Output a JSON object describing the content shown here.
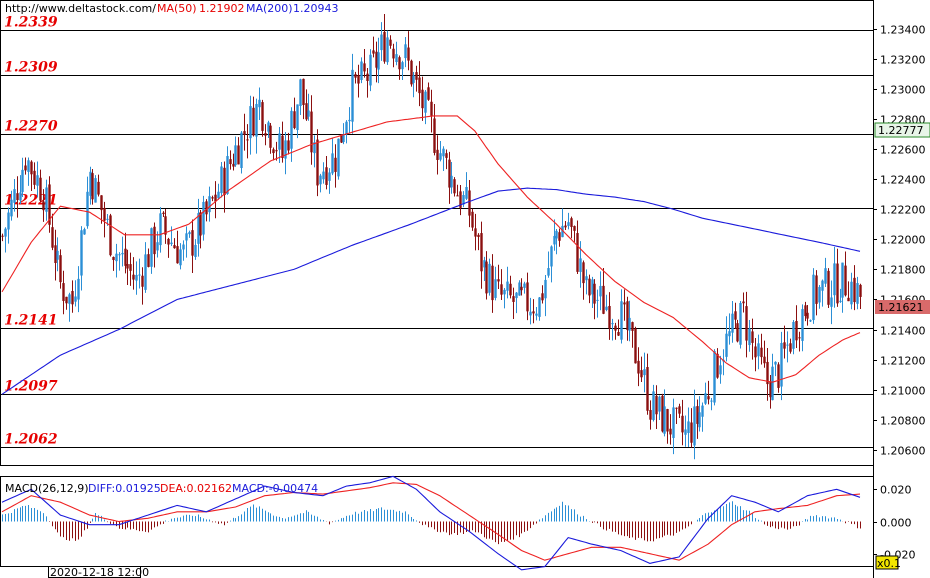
{
  "header": {
    "site": "http://www.deltastock.com/",
    "ma50_label": "MA(50)",
    "ma50_value": "1.21902",
    "ma200_label": "MA(200)",
    "ma200_value": "1.20943"
  },
  "macd_header": {
    "title": "MACD(26,12,9)",
    "diff": "DIFF:0.01925",
    "dea": "DEA:0.02162",
    "macd": "MACD:-0.00474"
  },
  "footer": {
    "date": "2020-12-18 12:00",
    "zoom": "x0.1"
  },
  "colors": {
    "up": "#2b8fd6",
    "down": "#8b0f0f",
    "ma50": "#ee2222",
    "ma200": "#1a1adb",
    "level_text": "#e60000",
    "current_price_bg": "#d86a6a",
    "marked_price_bg": "#e8f5e8"
  },
  "chart_data": {
    "type": "candlestick",
    "y_range": [
      1.2052,
      1.2357
    ],
    "y_ticks": [
      "1.23400",
      "1.23200",
      "1.23000",
      "1.22800",
      "1.22600",
      "1.22400",
      "1.22200",
      "1.22000",
      "1.21800",
      "1.21600",
      "1.21400",
      "1.21200",
      "1.21000",
      "1.20800",
      "1.20600"
    ],
    "levels": [
      "1.2339",
      "1.2309",
      "1.2270",
      "1.2221",
      "1.2141",
      "1.2097",
      "1.2062"
    ],
    "marked_price": "1.22777",
    "current_price": "1.21621",
    "anchors": [
      [
        0,
        1.2202
      ],
      [
        8,
        1.2255
      ],
      [
        14,
        1.2232
      ],
      [
        20,
        1.217
      ],
      [
        24,
        1.2158
      ],
      [
        30,
        1.2245
      ],
      [
        38,
        1.2195
      ],
      [
        46,
        1.2172
      ],
      [
        54,
        1.2208
      ],
      [
        62,
        1.219
      ],
      [
        70,
        1.2215
      ],
      [
        80,
        1.226
      ],
      [
        88,
        1.229
      ],
      [
        96,
        1.2255
      ],
      [
        102,
        1.23
      ],
      [
        108,
        1.2245
      ],
      [
        114,
        1.2255
      ],
      [
        120,
        1.23
      ],
      [
        126,
        1.231
      ],
      [
        132,
        1.2335
      ],
      [
        138,
        1.232
      ],
      [
        144,
        1.229
      ],
      [
        150,
        1.2258
      ],
      [
        156,
        1.2232
      ],
      [
        160,
        1.2218
      ],
      [
        164,
        1.2185
      ],
      [
        170,
        1.2162
      ],
      [
        176,
        1.2158
      ],
      [
        184,
        1.2158
      ],
      [
        190,
        1.2205
      ],
      [
        194,
        1.2212
      ],
      [
        200,
        1.2165
      ],
      [
        206,
        1.2158
      ],
      [
        212,
        1.2148
      ],
      [
        218,
        1.212
      ],
      [
        222,
        1.209
      ],
      [
        228,
        1.2078
      ],
      [
        234,
        1.207
      ],
      [
        238,
        1.208
      ],
      [
        242,
        1.21
      ],
      [
        246,
        1.2125
      ],
      [
        250,
        1.2138
      ],
      [
        254,
        1.215
      ],
      [
        258,
        1.2122
      ],
      [
        262,
        1.2105
      ],
      [
        266,
        1.2112
      ],
      [
        272,
        1.2145
      ],
      [
        278,
        1.2163
      ],
      [
        284,
        1.217
      ],
      [
        290,
        1.2172
      ],
      [
        294,
        1.2162
      ]
    ],
    "ma50": [
      [
        0,
        1.2165
      ],
      [
        10,
        1.2198
      ],
      [
        20,
        1.2222
      ],
      [
        30,
        1.2218
      ],
      [
        42,
        1.2203
      ],
      [
        54,
        1.2203
      ],
      [
        64,
        1.221
      ],
      [
        78,
        1.2233
      ],
      [
        92,
        1.2252
      ],
      [
        106,
        1.2263
      ],
      [
        118,
        1.227
      ],
      [
        132,
        1.2278
      ],
      [
        148,
        1.2282
      ],
      [
        156,
        1.2282
      ],
      [
        162,
        1.2272
      ],
      [
        170,
        1.225
      ],
      [
        180,
        1.2228
      ],
      [
        190,
        1.221
      ],
      [
        200,
        1.219
      ],
      [
        210,
        1.2172
      ],
      [
        220,
        1.2158
      ],
      [
        230,
        1.2148
      ],
      [
        240,
        1.2132
      ],
      [
        248,
        1.2118
      ],
      [
        256,
        1.2108
      ],
      [
        264,
        1.2105
      ],
      [
        272,
        1.211
      ],
      [
        280,
        1.2123
      ],
      [
        288,
        1.2133
      ],
      [
        294,
        1.2138
      ]
    ],
    "ma200": [
      [
        0,
        1.2097
      ],
      [
        20,
        1.2123
      ],
      [
        40,
        1.214
      ],
      [
        60,
        1.216
      ],
      [
        80,
        1.217
      ],
      [
        100,
        1.218
      ],
      [
        120,
        1.2196
      ],
      [
        140,
        1.221
      ],
      [
        160,
        1.2225
      ],
      [
        170,
        1.2232
      ],
      [
        180,
        1.2234
      ],
      [
        190,
        1.2233
      ],
      [
        200,
        1.223
      ],
      [
        210,
        1.2228
      ],
      [
        220,
        1.2225
      ],
      [
        230,
        1.222
      ],
      [
        240,
        1.2214
      ],
      [
        250,
        1.221
      ],
      [
        260,
        1.2206
      ],
      [
        270,
        1.2202
      ],
      [
        280,
        1.2198
      ],
      [
        294,
        1.2192
      ]
    ],
    "macd_y_ticks": [
      "0.020",
      "0.000",
      "-0.020"
    ],
    "macd_range": [
      -0.027,
      0.027
    ],
    "macd_hist_anchors": [
      [
        0,
        0.004
      ],
      [
        8,
        0.01
      ],
      [
        14,
        0.006
      ],
      [
        20,
        -0.01
      ],
      [
        26,
        -0.012
      ],
      [
        32,
        0.005
      ],
      [
        40,
        -0.004
      ],
      [
        50,
        -0.006
      ],
      [
        58,
        0.002
      ],
      [
        66,
        0.004
      ],
      [
        76,
        -0.002
      ],
      [
        86,
        0.01
      ],
      [
        96,
        0.002
      ],
      [
        104,
        0.006
      ],
      [
        112,
        -0.001
      ],
      [
        120,
        0.005
      ],
      [
        130,
        0.008
      ],
      [
        138,
        0.006
      ],
      [
        146,
        -0.004
      ],
      [
        154,
        -0.008
      ],
      [
        162,
        -0.006
      ],
      [
        170,
        -0.014
      ],
      [
        178,
        -0.008
      ],
      [
        186,
        0.004
      ],
      [
        192,
        0.012
      ],
      [
        198,
        0.004
      ],
      [
        206,
        -0.004
      ],
      [
        214,
        -0.01
      ],
      [
        222,
        -0.012
      ],
      [
        232,
        -0.007
      ],
      [
        242,
        0.006
      ],
      [
        250,
        0.012
      ],
      [
        256,
        0.006
      ],
      [
        262,
        -0.003
      ],
      [
        270,
        -0.005
      ],
      [
        278,
        0.004
      ],
      [
        286,
        0.002
      ],
      [
        294,
        -0.004
      ]
    ],
    "macd_diff": [
      [
        0,
        0.012
      ],
      [
        10,
        0.02
      ],
      [
        20,
        0.004
      ],
      [
        30,
        -0.002
      ],
      [
        40,
        -0.002
      ],
      [
        50,
        0.004
      ],
      [
        60,
        0.01
      ],
      [
        70,
        0.006
      ],
      [
        80,
        0.014
      ],
      [
        90,
        0.022
      ],
      [
        100,
        0.018
      ],
      [
        110,
        0.016
      ],
      [
        118,
        0.022
      ],
      [
        126,
        0.024
      ],
      [
        134,
        0.028
      ],
      [
        142,
        0.02
      ],
      [
        150,
        0.006
      ],
      [
        160,
        -0.006
      ],
      [
        170,
        -0.02
      ],
      [
        178,
        -0.03
      ],
      [
        186,
        -0.028
      ],
      [
        194,
        -0.01
      ],
      [
        202,
        -0.014
      ],
      [
        212,
        -0.018
      ],
      [
        222,
        -0.026
      ],
      [
        232,
        -0.022
      ],
      [
        242,
        0.002
      ],
      [
        250,
        0.016
      ],
      [
        258,
        0.012
      ],
      [
        266,
        0.006
      ],
      [
        276,
        0.016
      ],
      [
        286,
        0.02
      ],
      [
        294,
        0.015
      ]
    ],
    "macd_dea": [
      [
        0,
        0.006
      ],
      [
        10,
        0.016
      ],
      [
        20,
        0.012
      ],
      [
        30,
        0.004
      ],
      [
        40,
        0.0
      ],
      [
        50,
        0.002
      ],
      [
        60,
        0.006
      ],
      [
        70,
        0.006
      ],
      [
        80,
        0.009
      ],
      [
        90,
        0.016
      ],
      [
        100,
        0.018
      ],
      [
        110,
        0.017
      ],
      [
        118,
        0.019
      ],
      [
        126,
        0.021
      ],
      [
        134,
        0.024
      ],
      [
        142,
        0.023
      ],
      [
        150,
        0.016
      ],
      [
        160,
        0.004
      ],
      [
        170,
        -0.008
      ],
      [
        178,
        -0.018
      ],
      [
        186,
        -0.024
      ],
      [
        194,
        -0.02
      ],
      [
        202,
        -0.016
      ],
      [
        212,
        -0.016
      ],
      [
        222,
        -0.02
      ],
      [
        232,
        -0.024
      ],
      [
        242,
        -0.014
      ],
      [
        250,
        -0.002
      ],
      [
        258,
        0.006
      ],
      [
        266,
        0.008
      ],
      [
        276,
        0.01
      ],
      [
        286,
        0.016
      ],
      [
        294,
        0.017
      ]
    ]
  }
}
